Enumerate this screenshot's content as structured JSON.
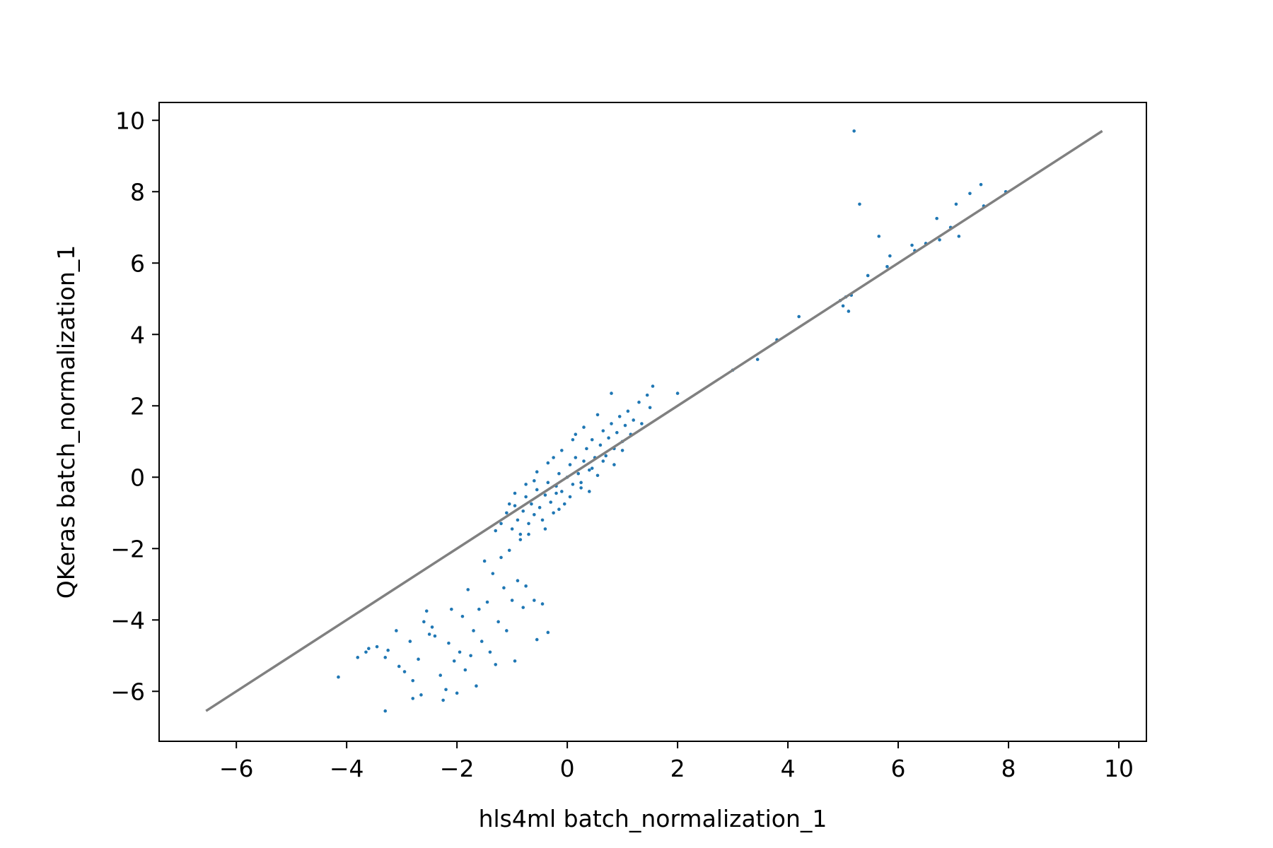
{
  "chart_data": {
    "type": "scatter",
    "xlabel": "hls4ml batch_normalization_1",
    "ylabel": "QKeras batch_normalization_1",
    "xlim": [
      -7.4,
      10.5
    ],
    "ylim": [
      -7.4,
      10.5
    ],
    "xticks": [
      -6,
      -4,
      -2,
      0,
      2,
      4,
      6,
      8,
      10
    ],
    "yticks": [
      -6,
      -4,
      -2,
      0,
      2,
      4,
      6,
      8,
      10
    ],
    "xtick_labels": [
      "−6",
      "−4",
      "−2",
      "0",
      "2",
      "4",
      "6",
      "8",
      "10"
    ],
    "ytick_labels": [
      "−6",
      "−4",
      "−2",
      "0",
      "2",
      "4",
      "6",
      "8",
      "10"
    ],
    "grid": false,
    "colors": {
      "points": "#1f77b4",
      "identity_line": "#808080"
    },
    "identity_line": {
      "x": [
        -6.55,
        9.7
      ],
      "y": [
        -6.55,
        9.7
      ]
    },
    "series": [
      {
        "points": [
          [
            -4.15,
            -5.6
          ],
          [
            -3.8,
            -5.05
          ],
          [
            -3.65,
            -4.9
          ],
          [
            -3.6,
            -4.8
          ],
          [
            -3.45,
            -4.75
          ],
          [
            -3.3,
            -6.55
          ],
          [
            -3.3,
            -5.05
          ],
          [
            -3.25,
            -4.85
          ],
          [
            -3.1,
            -4.3
          ],
          [
            -3.05,
            -5.3
          ],
          [
            -2.95,
            -5.45
          ],
          [
            -2.85,
            -4.6
          ],
          [
            -2.8,
            -5.7
          ],
          [
            -2.8,
            -6.2
          ],
          [
            -2.7,
            -5.1
          ],
          [
            -2.65,
            -6.1
          ],
          [
            -2.6,
            -4.05
          ],
          [
            -2.55,
            -3.75
          ],
          [
            -2.5,
            -4.4
          ],
          [
            -2.45,
            -4.2
          ],
          [
            -2.4,
            -4.45
          ],
          [
            -2.3,
            -5.55
          ],
          [
            -2.25,
            -6.25
          ],
          [
            -2.2,
            -5.95
          ],
          [
            -2.15,
            -4.65
          ],
          [
            -2.1,
            -3.7
          ],
          [
            -2.05,
            -5.15
          ],
          [
            -2.0,
            -6.05
          ],
          [
            -1.95,
            -4.9
          ],
          [
            -1.9,
            -3.9
          ],
          [
            -1.85,
            -5.4
          ],
          [
            -1.8,
            -3.15
          ],
          [
            -1.75,
            -5.0
          ],
          [
            -1.7,
            -4.3
          ],
          [
            -1.65,
            -5.85
          ],
          [
            -1.6,
            -3.7
          ],
          [
            -1.55,
            -4.6
          ],
          [
            -1.5,
            -2.35
          ],
          [
            -1.45,
            -3.5
          ],
          [
            -1.4,
            -4.9
          ],
          [
            -1.35,
            -2.7
          ],
          [
            -1.3,
            -5.25
          ],
          [
            -1.25,
            -4.05
          ],
          [
            -1.2,
            -2.25
          ],
          [
            -1.15,
            -3.1
          ],
          [
            -1.1,
            -4.3
          ],
          [
            -1.05,
            -2.05
          ],
          [
            -1.0,
            -3.45
          ],
          [
            -0.95,
            -5.15
          ],
          [
            -0.9,
            -2.9
          ],
          [
            -0.85,
            -1.75
          ],
          [
            -0.8,
            -3.65
          ],
          [
            -0.75,
            -3.05
          ],
          [
            -0.7,
            -1.6
          ],
          [
            -0.6,
            -3.45
          ],
          [
            -0.55,
            -4.55
          ],
          [
            -0.45,
            -3.55
          ],
          [
            -0.35,
            -4.35
          ],
          [
            -0.2,
            -0.45
          ],
          [
            -1.3,
            -1.5
          ],
          [
            -1.2,
            -1.3
          ],
          [
            -1.1,
            -1.0
          ],
          [
            -1.0,
            -1.45
          ],
          [
            -0.95,
            -0.8
          ],
          [
            -0.9,
            -1.2
          ],
          [
            -0.85,
            -1.6
          ],
          [
            -0.8,
            -0.95
          ],
          [
            -0.75,
            -0.55
          ],
          [
            -0.7,
            -1.3
          ],
          [
            -0.65,
            -0.75
          ],
          [
            -0.6,
            -1.05
          ],
          [
            -0.55,
            -0.35
          ],
          [
            -0.5,
            -0.85
          ],
          [
            -0.45,
            -1.2
          ],
          [
            -0.4,
            -0.5
          ],
          [
            -0.35,
            -0.15
          ],
          [
            -0.3,
            -0.7
          ],
          [
            -0.25,
            -1.0
          ],
          [
            -0.2,
            -0.25
          ],
          [
            -0.15,
            0.1
          ],
          [
            -0.1,
            -0.4
          ],
          [
            -0.05,
            -0.75
          ],
          [
            0.0,
            0.0
          ],
          [
            0.05,
            0.35
          ],
          [
            0.1,
            -0.2
          ],
          [
            0.15,
            0.55
          ],
          [
            0.2,
            0.1
          ],
          [
            0.25,
            -0.3
          ],
          [
            0.3,
            0.45
          ],
          [
            0.35,
            0.8
          ],
          [
            0.4,
            0.2
          ],
          [
            0.45,
            1.05
          ],
          [
            0.5,
            0.55
          ],
          [
            0.55,
            0.05
          ],
          [
            0.6,
            0.9
          ],
          [
            0.65,
            1.3
          ],
          [
            0.7,
            0.6
          ],
          [
            0.75,
            1.1
          ],
          [
            0.8,
            1.5
          ],
          [
            0.85,
            0.8
          ],
          [
            0.9,
            1.25
          ],
          [
            0.95,
            1.7
          ],
          [
            1.0,
            1.0
          ],
          [
            1.05,
            1.45
          ],
          [
            1.1,
            1.85
          ],
          [
            1.15,
            1.2
          ],
          [
            1.2,
            1.6
          ],
          [
            1.3,
            2.1
          ],
          [
            1.35,
            1.5
          ],
          [
            1.45,
            2.3
          ],
          [
            1.5,
            1.95
          ],
          [
            1.55,
            2.55
          ],
          [
            0.8,
            2.35
          ],
          [
            0.55,
            1.75
          ],
          [
            0.3,
            1.4
          ],
          [
            0.1,
            1.05
          ],
          [
            -0.1,
            0.75
          ],
          [
            -0.35,
            0.4
          ],
          [
            -0.55,
            0.15
          ],
          [
            -0.75,
            -0.2
          ],
          [
            -0.95,
            -0.45
          ],
          [
            -1.05,
            -0.75
          ],
          [
            -0.4,
            -1.45
          ],
          [
            -0.15,
            -0.9
          ],
          [
            0.05,
            -0.55
          ],
          [
            0.25,
            -0.15
          ],
          [
            0.45,
            0.25
          ],
          [
            0.65,
            0.45
          ],
          [
            0.85,
            0.35
          ],
          [
            1.0,
            0.75
          ],
          [
            0.15,
            1.2
          ],
          [
            -0.25,
            0.55
          ],
          [
            0.4,
            -0.4
          ],
          [
            -0.6,
            -0.1
          ],
          [
            2.0,
            2.35
          ],
          [
            3.45,
            3.3
          ],
          [
            3.8,
            3.85
          ],
          [
            4.2,
            4.5
          ],
          [
            4.95,
            4.95
          ],
          [
            5.0,
            4.8
          ],
          [
            5.05,
            5.05
          ],
          [
            5.1,
            4.65
          ],
          [
            5.15,
            5.1
          ],
          [
            5.2,
            9.7
          ],
          [
            5.3,
            7.65
          ],
          [
            5.45,
            5.65
          ],
          [
            5.65,
            6.75
          ],
          [
            5.8,
            5.9
          ],
          [
            5.85,
            6.2
          ],
          [
            6.25,
            6.5
          ],
          [
            6.3,
            6.35
          ],
          [
            6.5,
            6.55
          ],
          [
            6.7,
            7.25
          ],
          [
            6.75,
            6.65
          ],
          [
            6.95,
            7.0
          ],
          [
            7.05,
            7.65
          ],
          [
            7.1,
            6.75
          ],
          [
            7.3,
            7.95
          ],
          [
            7.5,
            8.2
          ],
          [
            7.55,
            7.6
          ],
          [
            7.95,
            8.0
          ],
          [
            3.0,
            3.0
          ]
        ]
      }
    ]
  }
}
